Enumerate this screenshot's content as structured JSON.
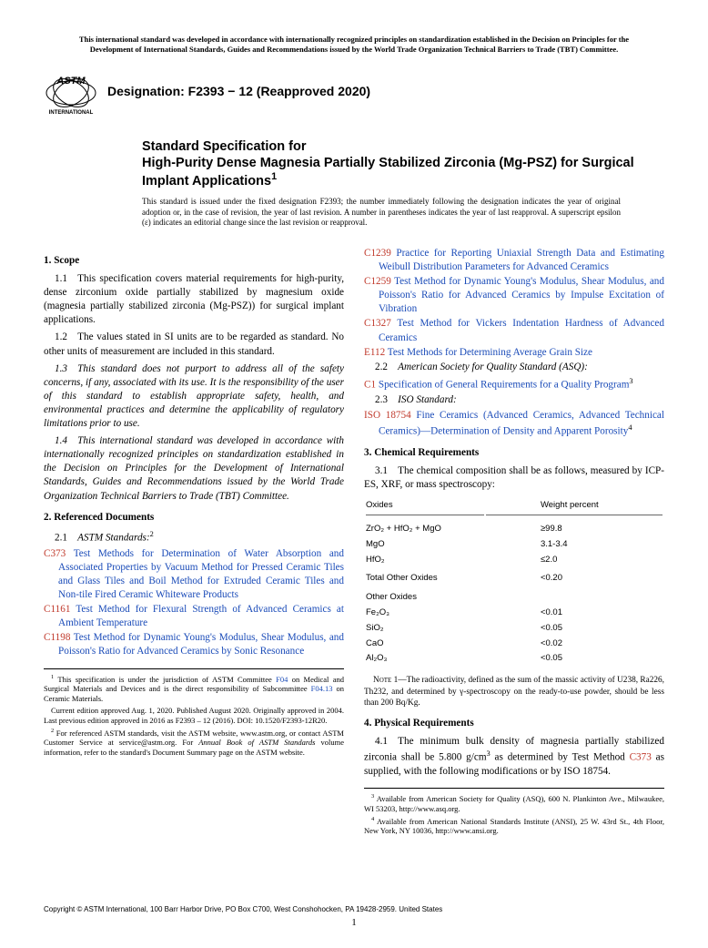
{
  "header_note": "This international standard was developed in accordance with internationally recognized principles on standardization established in the Decision on Principles for the Development of International Standards, Guides and Recommendations issued by the World Trade Organization Technical Barriers to Trade (TBT) Committee.",
  "designation": "Designation: F2393 − 12 (Reapproved 2020)",
  "title_pre": "Standard Specification for",
  "title_main": "High-Purity Dense Magnesia Partially Stabilized Zirconia (Mg-PSZ) for Surgical Implant Applications",
  "title_sup": "1",
  "issuance_note": "This standard is issued under the fixed designation F2393; the number immediately following the designation indicates the year of original adoption or, in the case of revision, the year of last revision. A number in parentheses indicates the year of last reapproval. A superscript epsilon (ε) indicates an editorial change since the last revision or reapproval.",
  "sections": {
    "s1_head": "1. Scope",
    "s1_1": "1.1 This specification covers material requirements for high-purity, dense zirconium oxide partially stabilized by magnesium oxide (magnesia partially stabilized zirconia (Mg-PSZ)) for surgical implant applications.",
    "s1_2": "1.2 The values stated in SI units are to be regarded as standard. No other units of measurement are included in this standard.",
    "s1_3": "1.3 This standard does not purport to address all of the safety concerns, if any, associated with its use. It is the responsibility of the user of this standard to establish appropriate safety, health, and environmental practices and determine the applicability of regulatory limitations prior to use.",
    "s1_4": "1.4 This international standard was developed in accordance with internationally recognized principles on standardization established in the Decision on Principles for the Development of International Standards, Guides and Recommendations issued by the World Trade Organization Technical Barriers to Trade (TBT) Committee.",
    "s2_head": "2. Referenced Documents",
    "s2_1_label": "2.1 ",
    "s2_1_text": "ASTM Standards:",
    "s2_2_label": "2.2 ",
    "s2_2_text": "American Society for Quality Standard (ASQ):",
    "s2_3_label": "2.3 ",
    "s2_3_text": "ISO Standard:",
    "s3_head": "3. Chemical Requirements",
    "s3_1": "3.1 The chemical composition shall be as follows, measured by ICP-ES, XRF, or mass spectroscopy:",
    "s4_head": "4. Physical Requirements",
    "s4_1a": "4.1 The minimum bulk density of magnesia partially stabilized zirconia shall be 5.800 g/cm",
    "s4_1b": " as determined by Test Method ",
    "s4_1c": " as supplied, with the following modifications or by ISO 18754."
  },
  "refs_left": [
    {
      "code": "C373",
      "title": "Test Methods for Determination of Water Absorption and Associated Properties by Vacuum Method for Pressed Ceramic Tiles and Glass Tiles and Boil Method for Extruded Ceramic Tiles and Non-tile Fired Ceramic Whiteware Products"
    },
    {
      "code": "C1161",
      "title": "Test Method for Flexural Strength of Advanced Ceramics at Ambient Temperature"
    },
    {
      "code": "C1198",
      "title": "Test Method for Dynamic Young's Modulus, Shear Modulus, and Poisson's Ratio for Advanced Ceramics by Sonic Resonance"
    }
  ],
  "refs_right_top": [
    {
      "code": "C1239",
      "title": "Practice for Reporting Uniaxial Strength Data and Estimating Weibull Distribution Parameters for Advanced Ceramics"
    },
    {
      "code": "C1259",
      "title": "Test Method for Dynamic Young's Modulus, Shear Modulus, and Poisson's Ratio for Advanced Ceramics by Impulse Excitation of Vibration"
    },
    {
      "code": "C1327",
      "title": "Test Method for Vickers Indentation Hardness of Advanced Ceramics"
    },
    {
      "code": "E112",
      "title": "Test Methods for Determining Average Grain Size"
    }
  ],
  "ref_asq": {
    "code": "C1",
    "title": "Specification of General Requirements for a Quality Program",
    "sup": "3"
  },
  "ref_iso": {
    "code": "ISO 18754",
    "title": "Fine Ceramics (Advanced Ceramics, Advanced Technical Ceramics)—Determination of Density and Apparent Porosity",
    "sup": "4"
  },
  "chem_table": {
    "headers": [
      "Oxides",
      "Weight percent"
    ],
    "rows_main": [
      [
        "ZrO₂ + HfO₂ + MgO",
        "≥99.8"
      ],
      [
        "MgO",
        "3.1-3.4"
      ],
      [
        "HfO₂",
        "≤2.0"
      ]
    ],
    "total_row": [
      "Total Other Oxides",
      "<0.20"
    ],
    "other_label": "Other Oxides",
    "rows_other": [
      [
        "Fe₂O₃",
        "<0.01"
      ],
      [
        "SiO₂",
        "<0.05"
      ],
      [
        "CaO",
        "<0.02"
      ],
      [
        "Al₂O₃",
        "<0.05"
      ]
    ]
  },
  "note1_label": "Note 1—",
  "note1_text": "The radioactivity, defined as the sum of the massic activity of U238, Ra226, Th232, and determined by γ-spectroscopy on the ready-to-use powder, should be less than 200 Bq/Kg.",
  "footnotes_left": {
    "f1a": " This specification is under the jurisdiction of ASTM Committee ",
    "f1b": " on Medical and Surgical Materials and Devices and is the direct responsibility of Subcommittee ",
    "f1c": " on Ceramic Materials.",
    "f1d": "Current edition approved Aug. 1, 2020. Published August 2020. Originally approved in 2004. Last previous edition approved in 2016 as F2393 – 12 (2016). DOI: 10.1520/F2393-12R20.",
    "f2a": " For referenced ASTM standards, visit the ASTM website, www.astm.org, or contact ASTM Customer Service at service@astm.org. For ",
    "f2b": " volume information, refer to the standard's Document Summary page on the ASTM website.",
    "f04": "F04",
    "f0413": "F04.13",
    "book": "Annual Book of ASTM Standards"
  },
  "footnotes_right": {
    "f3": " Available from American Society for Quality (ASQ), 600 N. Plankinton Ave., Milwaukee, WI 53203, http://www.asq.org.",
    "f4": " Available from American National Standards Institute (ANSI), 25 W. 43rd St., 4th Floor, New York, NY 10036, http://www.ansi.org."
  },
  "copyright": "Copyright © ASTM International, 100 Barr Harbor Drive, PO Box C700, West Conshohocken, PA 19428-2959. United States",
  "pagenum": "1",
  "ref_c373": "C373",
  "colors": {
    "link_blue": "#1a4bb8",
    "ref_red": "#c0392b",
    "text": "#000000",
    "bg": "#ffffff"
  }
}
